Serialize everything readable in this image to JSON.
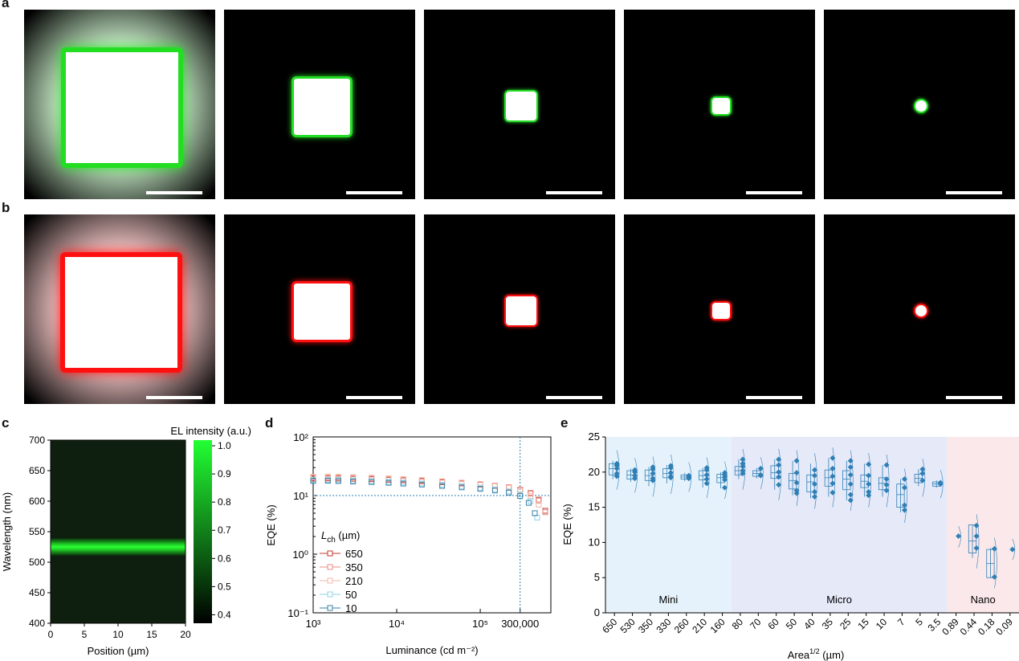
{
  "figure": {
    "panel_labels": {
      "a": "a",
      "b": "b",
      "c": "c",
      "d": "d",
      "e": "e"
    },
    "row_a_color": "#22dd22",
    "row_b_color": "#ff1010"
  },
  "chart_data": [
    {
      "panel": "c",
      "type": "heatmap",
      "xlabel": "Position (µm)",
      "ylabel": "Wavelength (nm)",
      "xlim": [
        0,
        20
      ],
      "ylim": [
        400,
        700
      ],
      "xticks": [
        "0",
        "5",
        "10",
        "15",
        "20"
      ],
      "yticks": [
        "400",
        "450",
        "500",
        "550",
        "600",
        "650",
        "700"
      ],
      "colorbar": {
        "label": "EL intensity (a.u.)",
        "range": [
          0.37,
          1.02
        ],
        "ticks": [
          "0.4",
          "0.5",
          "0.6",
          "0.7",
          "0.8",
          "0.9",
          "1.0"
        ],
        "color_low": "#000000",
        "color_high": "#22ff33"
      },
      "emission_band": {
        "center_wavelength": 525,
        "intensity": 1.0,
        "background_intensity": 0.4
      }
    },
    {
      "panel": "d",
      "type": "scatter",
      "xlabel": "Luminance (cd m⁻²)",
      "ylabel": "EQE (%)",
      "xscale": "log",
      "yscale": "log",
      "xlim": [
        1000,
        700000
      ],
      "ylim": [
        0.1,
        100
      ],
      "xticks": [
        "10³",
        "10⁴",
        "10⁵",
        "300,000"
      ],
      "yticks": [
        "10⁻¹",
        "10⁰",
        "10¹",
        "10²"
      ],
      "reference_lines": {
        "x": 300000,
        "y": 10
      },
      "legend": {
        "title_main": "L",
        "title_sub": "ch",
        "title_unit": " (µm)",
        "position": "center-left"
      },
      "series": [
        {
          "name": "650",
          "color": "#c0392b",
          "x": [
            1000,
            1500,
            2000,
            3000,
            5000,
            8000,
            12000,
            20000,
            35000,
            60000,
            100000,
            150000,
            220000,
            300000,
            400000,
            500000,
            600000
          ],
          "y": [
            19.5,
            19.6,
            19.5,
            19.3,
            19,
            18.6,
            18.2,
            17.6,
            16.9,
            16.1,
            15.3,
            14.6,
            13.7,
            12.6,
            11,
            8.5,
            5.5
          ]
        },
        {
          "name": "350",
          "color": "#ec8a80",
          "x": [
            1000,
            1500,
            2000,
            3000,
            5000,
            8000,
            12000,
            20000,
            35000,
            60000,
            100000,
            150000,
            220000,
            300000,
            400000,
            500000,
            600000
          ],
          "y": [
            20.5,
            20.6,
            20.4,
            20.2,
            19.8,
            19.3,
            18.9,
            18.2,
            17.4,
            16.6,
            15.7,
            14.8,
            13.9,
            12.6,
            10.8,
            8.2,
            5.2
          ]
        },
        {
          "name": "210",
          "color": "#f4b7a9",
          "x": [
            1000,
            1500,
            2000,
            3000,
            5000,
            8000,
            12000,
            20000,
            35000,
            60000,
            100000,
            150000,
            220000,
            300000,
            400000,
            500000
          ],
          "y": [
            21,
            21.1,
            20.9,
            20.6,
            20.2,
            19.7,
            19.1,
            18.4,
            17.5,
            16.5,
            15.5,
            14.5,
            13.5,
            12,
            9.8,
            7
          ]
        },
        {
          "name": "50",
          "color": "#8fd3e6",
          "x": [
            1000,
            1500,
            2000,
            3000,
            5000,
            8000,
            12000,
            20000,
            35000,
            60000,
            100000,
            150000,
            220000,
            300000,
            400000,
            480000
          ],
          "y": [
            18.5,
            18.6,
            18.4,
            18.1,
            17.7,
            17.2,
            16.7,
            16.1,
            15.3,
            14.5,
            13.6,
            12.8,
            11.8,
            10.5,
            8,
            4.2
          ]
        },
        {
          "name": "10",
          "color": "#3a7fa8",
          "x": [
            1000,
            1500,
            2000,
            3000,
            5000,
            8000,
            12000,
            20000,
            35000,
            60000,
            100000,
            150000,
            220000,
            300000,
            380000,
            450000
          ],
          "y": [
            17.8,
            17.9,
            17.7,
            17.4,
            17,
            16.5,
            16,
            15.4,
            14.6,
            13.8,
            13,
            12.2,
            11.2,
            9.8,
            7.5,
            5
          ]
        }
      ]
    },
    {
      "panel": "e",
      "type": "box",
      "xlabel_main": "Area",
      "xlabel_sup": "1/2",
      "xlabel_unit": " (µm)",
      "ylabel": "EQE (%)",
      "ylim": [
        0,
        25
      ],
      "yticks": [
        "0",
        "5",
        "10",
        "15",
        "20",
        "25"
      ],
      "point_color": "#2f7fb5",
      "regions": [
        {
          "name": "Mini",
          "from": 0,
          "to": 7,
          "color": "#e6f2fb"
        },
        {
          "name": "Micro",
          "from": 7,
          "to": 19,
          "color": "#e5e9f8"
        },
        {
          "name": "Nano",
          "from": 19,
          "to": 23,
          "color": "#fbe8ea"
        }
      ],
      "categories": [
        "650",
        "530",
        "350",
        "330",
        "260",
        "210",
        "160",
        "80",
        "70",
        "60",
        "50",
        "40",
        "35",
        "25",
        "15",
        "10",
        "7",
        "5",
        "3.5",
        "0.89",
        "0.44",
        "0.18",
        "0.09"
      ],
      "median": [
        20.5,
        19.6,
        19.5,
        19.8,
        19.3,
        19.5,
        19.2,
        20.2,
        19.8,
        19.9,
        18.8,
        18.6,
        19.2,
        19,
        18.7,
        18.4,
        16.8,
        19.1,
        18.3,
        10.8,
        10.2,
        7,
        9
      ],
      "q1": [
        19.6,
        19,
        18.8,
        19.2,
        19,
        18.9,
        18.5,
        19.6,
        19.4,
        19.1,
        17.6,
        17.2,
        18,
        17.5,
        17.8,
        17.5,
        15,
        18.5,
        18,
        10.8,
        8.5,
        5,
        9
      ],
      "q3": [
        21.2,
        20.2,
        20.3,
        20.5,
        19.6,
        20.2,
        19.7,
        20.8,
        20.2,
        20.9,
        19.8,
        19.6,
        20.3,
        20.2,
        19.6,
        19.2,
        18.3,
        19.7,
        18.6,
        10.8,
        12.5,
        9,
        9
      ],
      "min": [
        19,
        18.6,
        18,
        18.4,
        18.7,
        17.8,
        17.7,
        19,
        19.1,
        17.5,
        16.7,
        16.3,
        16.5,
        16,
        16.5,
        16.5,
        14.3,
        18,
        17.8,
        10.8,
        7.8,
        5,
        9
      ],
      "max": [
        21.6,
        20.5,
        20.7,
        21,
        19.9,
        20.6,
        20,
        21.8,
        20.6,
        21.8,
        21.6,
        21.2,
        22,
        21.6,
        21.2,
        21,
        19,
        20.4,
        18.8,
        10.8,
        12.5,
        9.2,
        9
      ],
      "points": [
        [
          21,
          20.5,
          19.8,
          21.2,
          20.9,
          19.4
        ],
        [
          20,
          19.5,
          19.1,
          20.3
        ],
        [
          19.8,
          20.4,
          18.8,
          19.1,
          20.7
        ],
        [
          20.6,
          19.4,
          20.9,
          19.9,
          19.2
        ],
        [
          19.5,
          19.1,
          19.3
        ],
        [
          19,
          20.3,
          19.6,
          18.4,
          20.6
        ],
        [
          19.3,
          18.9,
          19.9,
          17.8,
          19.6
        ],
        [
          21.2,
          20.2,
          19.8,
          20.8,
          21.8
        ],
        [
          20.5,
          19.5,
          19.6
        ],
        [
          20,
          21,
          19.3,
          21.8,
          18.2
        ],
        [
          21.6,
          19.9,
          18.5,
          17.4,
          17
        ],
        [
          20.3,
          19.5,
          18.3,
          17.2,
          16.5
        ],
        [
          22,
          20.5,
          19.4,
          18.4,
          17.1
        ],
        [
          21.6,
          20.7,
          19.6,
          18.3,
          16.8,
          16
        ],
        [
          21.1,
          19.5,
          18.3,
          17.2,
          16.7
        ],
        [
          21,
          19,
          18.2,
          17.4
        ],
        [
          19,
          17.8,
          15.3,
          14.6
        ],
        [
          20.4,
          19.8,
          18.8
        ],
        [
          18.5,
          18.3
        ],
        [
          10.9
        ],
        [
          12.4,
          10.9,
          9.2
        ],
        [
          9.1,
          5.1
        ],
        [
          9
        ]
      ]
    }
  ],
  "panel_e_region_labels": {
    "mini": "Mini",
    "micro": "Micro",
    "nano": "Nano"
  }
}
